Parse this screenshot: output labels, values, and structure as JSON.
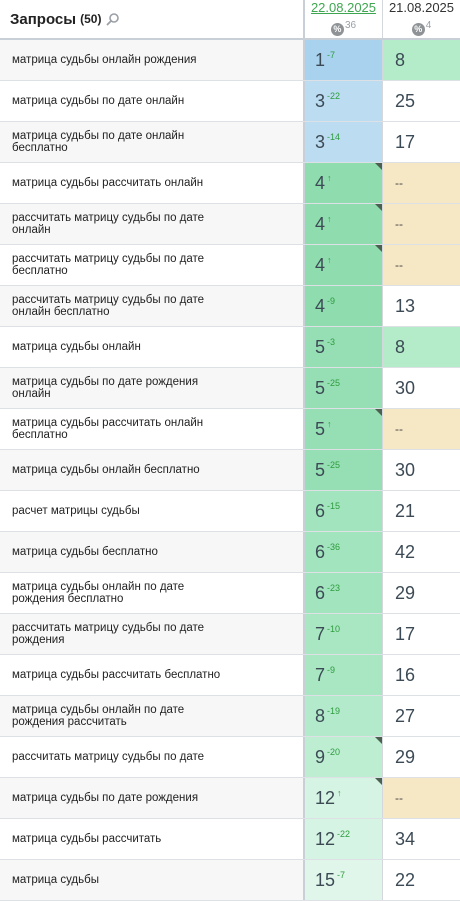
{
  "header": {
    "title": "Запросы",
    "count": "(50)",
    "col_a_date": "22.08.2025",
    "col_a_pct": "36",
    "col_b_date": "21.08.2025",
    "col_b_pct": "4",
    "pct_symbol": "%"
  },
  "colors": {
    "blue_dark": "#a9d2ef",
    "blue_light": "#bcdcf1",
    "green_dark": "#8fdcaf",
    "green_mid": "#a6e6c0",
    "green_light": "#c3efd5",
    "green_pale": "#e1f6ea",
    "empty_tan": "#f6e8c5"
  },
  "rows": [
    {
      "query": "матрица судьбы онлайн рождения",
      "pos": "1",
      "delta": "-7",
      "b": "8",
      "a_color": "#a9d2ef",
      "b_color": "#b4ecc9",
      "corner": false
    },
    {
      "query": "матрица судьбы по дате онлайн",
      "pos": "3",
      "delta": "-22",
      "b": "25",
      "a_color": "#bcdcf1",
      "b_color": "#ffffff",
      "corner": false
    },
    {
      "query": "матрица судьбы по дате онлайн бесплатно",
      "pos": "3",
      "delta": "-14",
      "b": "17",
      "a_color": "#bcdcf1",
      "b_color": "#ffffff",
      "corner": false
    },
    {
      "query": "матрица судьбы рассчитать онлайн",
      "pos": "4",
      "delta": "↑",
      "b": "--",
      "a_color": "#8fdcaf",
      "b_color": "#f6e8c5",
      "corner": true
    },
    {
      "query": "рассчитать матрицу судьбы по дате онлайн",
      "pos": "4",
      "delta": "↑",
      "b": "--",
      "a_color": "#8fdcaf",
      "b_color": "#f6e8c5",
      "corner": true
    },
    {
      "query": "рассчитать матрицу судьбы по дате бесплатно",
      "pos": "4",
      "delta": "↑",
      "b": "--",
      "a_color": "#8fdcaf",
      "b_color": "#f6e8c5",
      "corner": true
    },
    {
      "query": "рассчитать матрицу судьбы по дате онлайн бесплатно",
      "pos": "4",
      "delta": "-9",
      "b": "13",
      "a_color": "#8fdcaf",
      "b_color": "#ffffff",
      "corner": false
    },
    {
      "query": "матрица судьбы онлайн",
      "pos": "5",
      "delta": "-3",
      "b": "8",
      "a_color": "#96dfb4",
      "b_color": "#b4ecc9",
      "corner": false
    },
    {
      "query": "матрица судьбы по дате рождения онлайн",
      "pos": "5",
      "delta": "-25",
      "b": "30",
      "a_color": "#96dfb4",
      "b_color": "#ffffff",
      "corner": false
    },
    {
      "query": "матрица судьбы рассчитать онлайн бесплатно",
      "pos": "5",
      "delta": "↑",
      "b": "--",
      "a_color": "#96dfb4",
      "b_color": "#f6e8c5",
      "corner": true
    },
    {
      "query": "матрица судьбы онлайн бесплатно",
      "pos": "5",
      "delta": "-25",
      "b": "30",
      "a_color": "#96dfb4",
      "b_color": "#ffffff",
      "corner": false
    },
    {
      "query": "расчет матрицы судьбы",
      "pos": "6",
      "delta": "-15",
      "b": "21",
      "a_color": "#a2e4bd",
      "b_color": "#ffffff",
      "corner": false
    },
    {
      "query": "матрица судьбы бесплатно",
      "pos": "6",
      "delta": "-36",
      "b": "42",
      "a_color": "#a2e4bd",
      "b_color": "#ffffff",
      "corner": false
    },
    {
      "query": "матрица судьбы онлайн по дате рождения бесплатно",
      "pos": "6",
      "delta": "-23",
      "b": "29",
      "a_color": "#a2e4bd",
      "b_color": "#ffffff",
      "corner": false
    },
    {
      "query": "рассчитать матрицу судьбы по дате рождения",
      "pos": "7",
      "delta": "-10",
      "b": "17",
      "a_color": "#a9e6c2",
      "b_color": "#ffffff",
      "corner": false
    },
    {
      "query": "матрица судьбы рассчитать бесплатно",
      "pos": "7",
      "delta": "-9",
      "b": "16",
      "a_color": "#a9e6c2",
      "b_color": "#ffffff",
      "corner": false
    },
    {
      "query": "матрица судьбы онлайн по дате рождения рассчитать",
      "pos": "8",
      "delta": "-19",
      "b": "27",
      "a_color": "#b3eacb",
      "b_color": "#ffffff",
      "corner": false
    },
    {
      "query": "рассчитать матрицу судьбы по дате",
      "pos": "9",
      "delta": "-20",
      "b": "29",
      "a_color": "#bdeed2",
      "b_color": "#ffffff",
      "corner": true
    },
    {
      "query": "матрица судьбы по дате рождения",
      "pos": "12",
      "delta": "↑",
      "b": "--",
      "a_color": "#d6f4e3",
      "b_color": "#f6e8c5",
      "corner": true
    },
    {
      "query": "матрица судьбы рассчитать",
      "pos": "12",
      "delta": "-22",
      "b": "34",
      "a_color": "#d6f4e3",
      "b_color": "#ffffff",
      "corner": false
    },
    {
      "query": "матрица судьбы",
      "pos": "15",
      "delta": "-7",
      "b": "22",
      "a_color": "#e1f6ea",
      "b_color": "#ffffff",
      "corner": false
    }
  ]
}
